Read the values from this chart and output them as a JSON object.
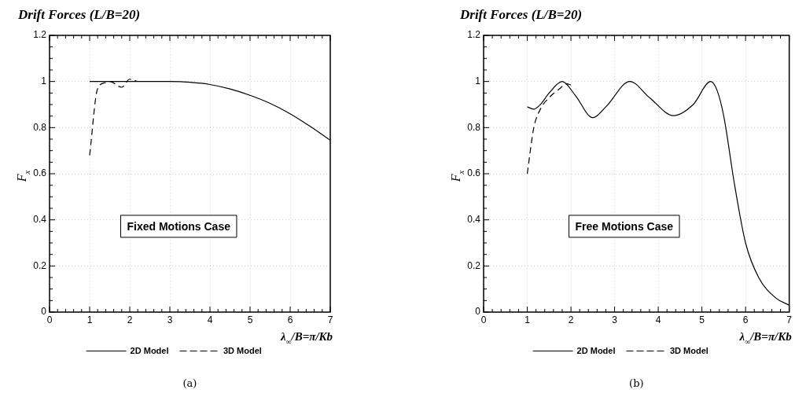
{
  "chart_data": [
    {
      "type": "line",
      "title": "Drift Forces (L/B=20)",
      "xlabel": "λ$_{∞}$/B=π/Kb",
      "ylabel": "F$_{x}$",
      "annotations": [
        "Fixed Motions Case",
        "(a)"
      ],
      "xlim": [
        0,
        7
      ],
      "xticks": [
        0,
        1,
        2,
        3,
        4,
        5,
        6,
        7
      ],
      "ylim": [
        0,
        1.2
      ],
      "yticks": [
        0,
        0.2,
        0.4,
        0.6,
        0.8,
        1,
        1.2
      ],
      "grid": true,
      "legend": "bottom",
      "marker": "none",
      "series": [
        {
          "name": "2D Model",
          "color": "#000000",
          "line_style": "solid",
          "x": [
            1,
            1.5,
            2,
            2.5,
            3,
            3.5,
            4,
            4.5,
            5,
            5.5,
            6,
            6.5,
            7
          ],
          "values": [
            1,
            1,
            1,
            1,
            1,
            0.997,
            0.987,
            0.968,
            0.94,
            0.905,
            0.86,
            0.805,
            0.745
          ]
        },
        {
          "name": "3D Model",
          "color": "#000000",
          "line_style": "dashed",
          "x": [
            1,
            1.2,
            1.4,
            1.5,
            1.8,
            2,
            2.2
          ],
          "values": [
            0.68,
            0.97,
            0.995,
            1,
            0.975,
            1.01,
            1
          ]
        }
      ]
    },
    {
      "type": "line",
      "title": "Drift Forces (L/B=20)",
      "xlabel": "λ$_{∞}$/B=π/Kb",
      "ylabel": "F$_{x}$",
      "annotations": [
        "Free Motions Case",
        "(b)"
      ],
      "xlim": [
        0,
        7
      ],
      "xticks": [
        0,
        1,
        2,
        3,
        4,
        5,
        6,
        7
      ],
      "ylim": [
        0,
        1.2
      ],
      "yticks": [
        0,
        0.2,
        0.4,
        0.6,
        0.8,
        1,
        1.2
      ],
      "grid": true,
      "legend": "bottom",
      "marker": "none",
      "series": [
        {
          "name": "2D Model",
          "color": "#000000",
          "line_style": "solid",
          "x": [
            1,
            1.15,
            1.3,
            1.5,
            1.8,
            2.1,
            2.5,
            2.8,
            3.35,
            3.8,
            4.35,
            4.8,
            5.2,
            5.35,
            5.5,
            5.75,
            6,
            6.3,
            6.7,
            7
          ],
          "values": [
            0.89,
            0.88,
            0.9,
            0.95,
            1,
            0.94,
            0.843,
            0.89,
            1,
            0.93,
            0.852,
            0.9,
            1,
            0.96,
            0.85,
            0.55,
            0.3,
            0.15,
            0.06,
            0.03
          ]
        },
        {
          "name": "3D Model",
          "color": "#000000",
          "line_style": "dashed",
          "x": [
            1,
            1.15,
            1.3,
            1.5,
            1.75,
            1.9,
            2
          ],
          "values": [
            0.6,
            0.8,
            0.88,
            0.93,
            0.97,
            0.99,
            0.985
          ]
        }
      ]
    }
  ]
}
